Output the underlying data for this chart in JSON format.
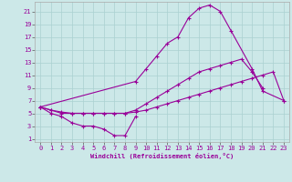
{
  "xlabel": "Windchill (Refroidissement éolien,°C)",
  "background_color": "#cce8e8",
  "grid_color": "#aad0d0",
  "line_color": "#990099",
  "xlim": [
    -0.5,
    23.5
  ],
  "ylim": [
    0.5,
    22.5
  ],
  "xticks": [
    0,
    1,
    2,
    3,
    4,
    5,
    6,
    7,
    8,
    9,
    10,
    11,
    12,
    13,
    14,
    15,
    16,
    17,
    18,
    19,
    20,
    21,
    22,
    23
  ],
  "yticks": [
    1,
    3,
    5,
    7,
    9,
    11,
    13,
    15,
    17,
    19,
    21
  ],
  "line1_x": [
    0,
    1,
    2,
    3,
    4,
    5,
    6,
    7,
    8,
    9
  ],
  "line1_y": [
    6,
    5,
    4.5,
    3.5,
    3,
    3,
    2.5,
    1.5,
    1.5,
    4.5
  ],
  "line2_x": [
    0,
    1,
    2,
    3,
    4,
    5,
    6,
    7,
    8,
    9,
    10,
    11,
    12,
    13,
    14,
    15,
    16,
    17,
    18,
    19,
    20,
    21,
    22,
    23
  ],
  "line2_y": [
    6,
    5.5,
    5.2,
    5,
    5,
    5,
    5,
    5,
    5,
    5.2,
    5.5,
    6,
    6.5,
    7,
    7.5,
    8,
    8.5,
    9,
    9.5,
    10,
    10.5,
    11,
    11.5,
    7
  ],
  "line3_x": [
    0,
    1,
    2,
    3,
    4,
    5,
    6,
    7,
    8,
    9,
    10,
    11,
    12,
    13,
    14,
    15,
    16,
    17,
    18,
    19,
    20,
    21,
    22,
    23
  ],
  "line3_y": [
    6,
    5.5,
    5,
    5,
    5,
    5,
    5,
    5,
    5,
    5.5,
    6.5,
    7.5,
    8.5,
    9.5,
    10.5,
    11.5,
    12,
    12.5,
    13,
    13.5,
    11.5,
    9,
    null,
    null
  ],
  "line4_x": [
    0,
    9,
    10,
    11,
    12,
    13,
    14,
    15,
    16,
    17,
    18,
    20,
    21,
    23
  ],
  "line4_y": [
    6,
    10,
    12,
    14,
    16,
    17,
    20,
    21.5,
    22,
    21,
    18,
    12,
    8.5,
    7
  ]
}
